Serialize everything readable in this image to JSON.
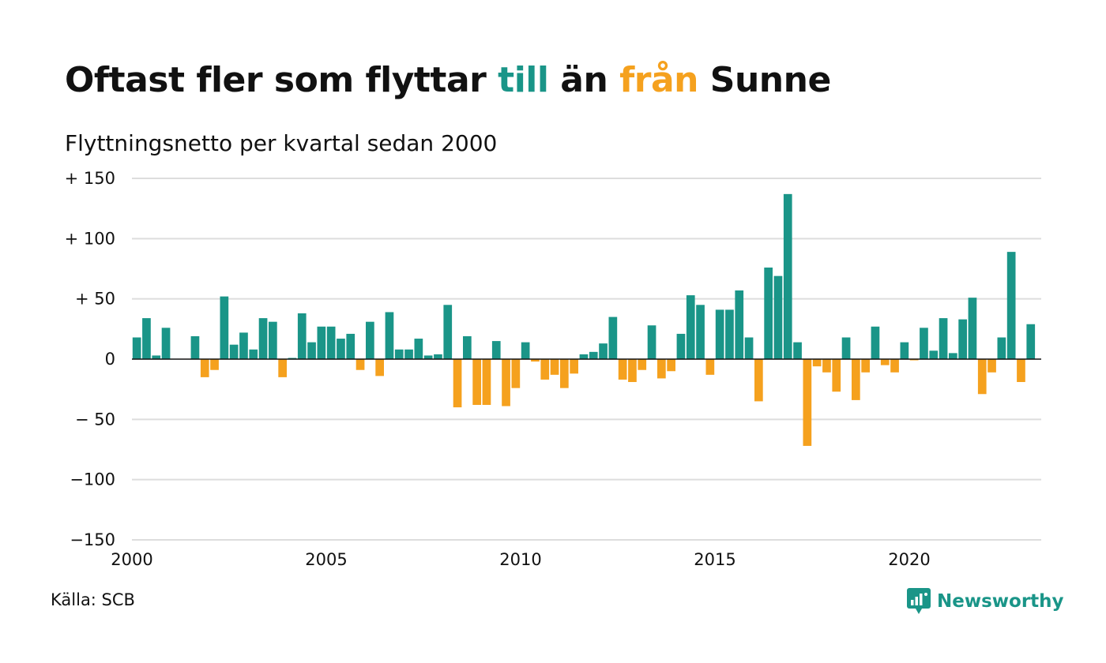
{
  "title": {
    "part1": "Oftast fler som flyttar ",
    "to_word": "till",
    "part2": " än ",
    "from_word": "från",
    "part3": " Sunne"
  },
  "subtitle": "Flyttningsnetto per kvartal sedan 2000",
  "source": "Källa: SCB",
  "logo_text": "Newsworthy",
  "colors": {
    "positive": "#1a9588",
    "negative": "#f5a11e",
    "grid": "#dddddd",
    "zero_line": "#111111"
  },
  "chart_data": {
    "type": "bar",
    "title": "Oftast fler som flyttar till än från Sunne",
    "subtitle": "Flyttningsnetto per kvartal sedan 2000",
    "x_start": "2000 Q1",
    "x_ticks": [
      2000,
      2005,
      2010,
      2015,
      2020
    ],
    "y_ticks": [
      {
        "value": 150,
        "label": "+ 150"
      },
      {
        "value": 100,
        "label": "+ 100"
      },
      {
        "value": 50,
        "label": "+  50"
      },
      {
        "value": 0,
        "label": "0"
      },
      {
        "value": -50,
        "label": "− 50"
      },
      {
        "value": -100,
        "label": "−100"
      },
      {
        "value": -150,
        "label": "−150"
      }
    ],
    "ylim": [
      -150,
      150
    ],
    "grid": true,
    "values": [
      18,
      34,
      3,
      26,
      0,
      0,
      19,
      -15,
      -9,
      52,
      12,
      22,
      8,
      34,
      31,
      -15,
      1,
      38,
      14,
      27,
      27,
      17,
      21,
      -9,
      31,
      -14,
      39,
      8,
      8,
      17,
      3,
      4,
      45,
      -40,
      19,
      -38,
      -38,
      15,
      -39,
      -24,
      14,
      -2,
      -17,
      -13,
      -24,
      -12,
      4,
      6,
      13,
      35,
      -17,
      -19,
      -9,
      28,
      -16,
      -10,
      21,
      53,
      45,
      -13,
      41,
      41,
      57,
      18,
      -35,
      76,
      69,
      137,
      14,
      -72,
      -6,
      -11,
      -27,
      18,
      -34,
      -11,
      27,
      -5,
      -11,
      14,
      -1,
      26,
      7,
      34,
      5,
      33,
      51,
      -29,
      -11,
      18,
      89,
      -19,
      29
    ]
  }
}
